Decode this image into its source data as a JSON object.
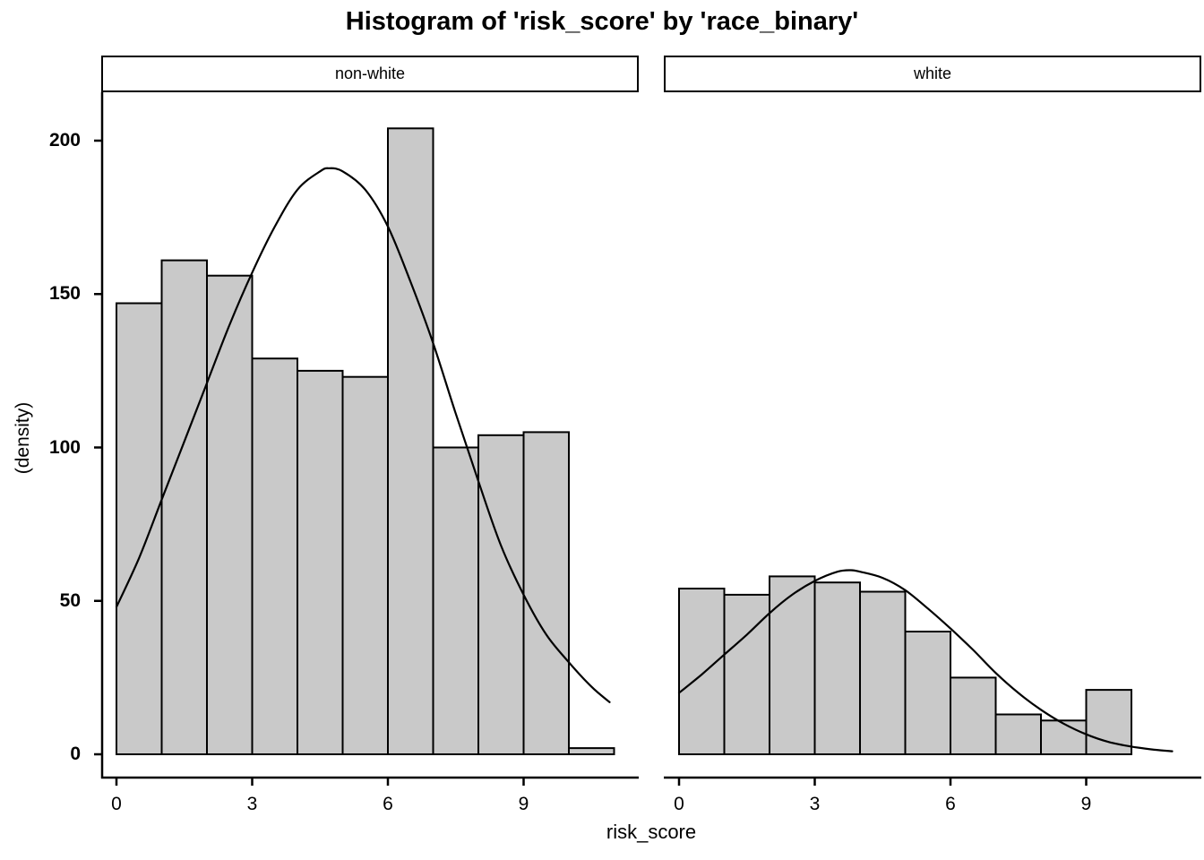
{
  "chart_data": {
    "type": "histogram",
    "title": "Histogram of 'risk_score' by 'race_binary'",
    "x_axis": {
      "label": "risk_score",
      "ticks": [
        0,
        3,
        6,
        9
      ],
      "range": [
        -0.35,
        11.66
      ]
    },
    "y_axis": {
      "label": "(density)",
      "ticks": [
        0,
        50,
        100,
        150,
        200
      ],
      "range": [
        0,
        214
      ]
    },
    "bin_width": 1,
    "grid": false,
    "legend": false,
    "colors": {
      "bar_fill": "#c9c9c9",
      "bar_stroke": "#000000",
      "density_curve": "#000000",
      "axis": "#000000",
      "strip_background": "#ffffff",
      "background": "#ffffff"
    },
    "facets": [
      {
        "label": "non-white",
        "bins_start": 0,
        "counts": [
          147,
          161,
          156,
          129,
          125,
          123,
          204,
          100,
          104,
          105,
          2
        ],
        "density_curve": {
          "x": [
            0,
            0.5,
            1,
            1.5,
            2,
            2.5,
            3,
            3.5,
            4,
            4.5,
            4.7,
            5,
            5.5,
            6,
            6.5,
            7,
            7.5,
            8,
            8.5,
            9,
            9.5,
            10,
            10.5,
            10.9
          ],
          "y": [
            48,
            64,
            83,
            102,
            121,
            140,
            157,
            172,
            184,
            190,
            191,
            190,
            184,
            172,
            154,
            134,
            111,
            89,
            68,
            52,
            39,
            30,
            22,
            17
          ]
        }
      },
      {
        "label": "white",
        "bins_start": 0,
        "counts": [
          54,
          52,
          58,
          56,
          53,
          40,
          25,
          13,
          11,
          21
        ],
        "density_curve": {
          "x": [
            0,
            0.5,
            1,
            1.5,
            2,
            2.5,
            3,
            3.5,
            3.8,
            4,
            4.5,
            5,
            5.5,
            6,
            6.5,
            7,
            7.5,
            8,
            8.5,
            9,
            9.5,
            10,
            10.5,
            10.9
          ],
          "y": [
            20,
            26,
            32.5,
            39,
            46,
            52,
            56.5,
            59.5,
            60,
            59.5,
            57.5,
            53.5,
            47.5,
            41,
            34,
            26.5,
            20,
            14.5,
            10,
            6.5,
            4,
            2.5,
            1.5,
            1
          ]
        }
      }
    ]
  }
}
